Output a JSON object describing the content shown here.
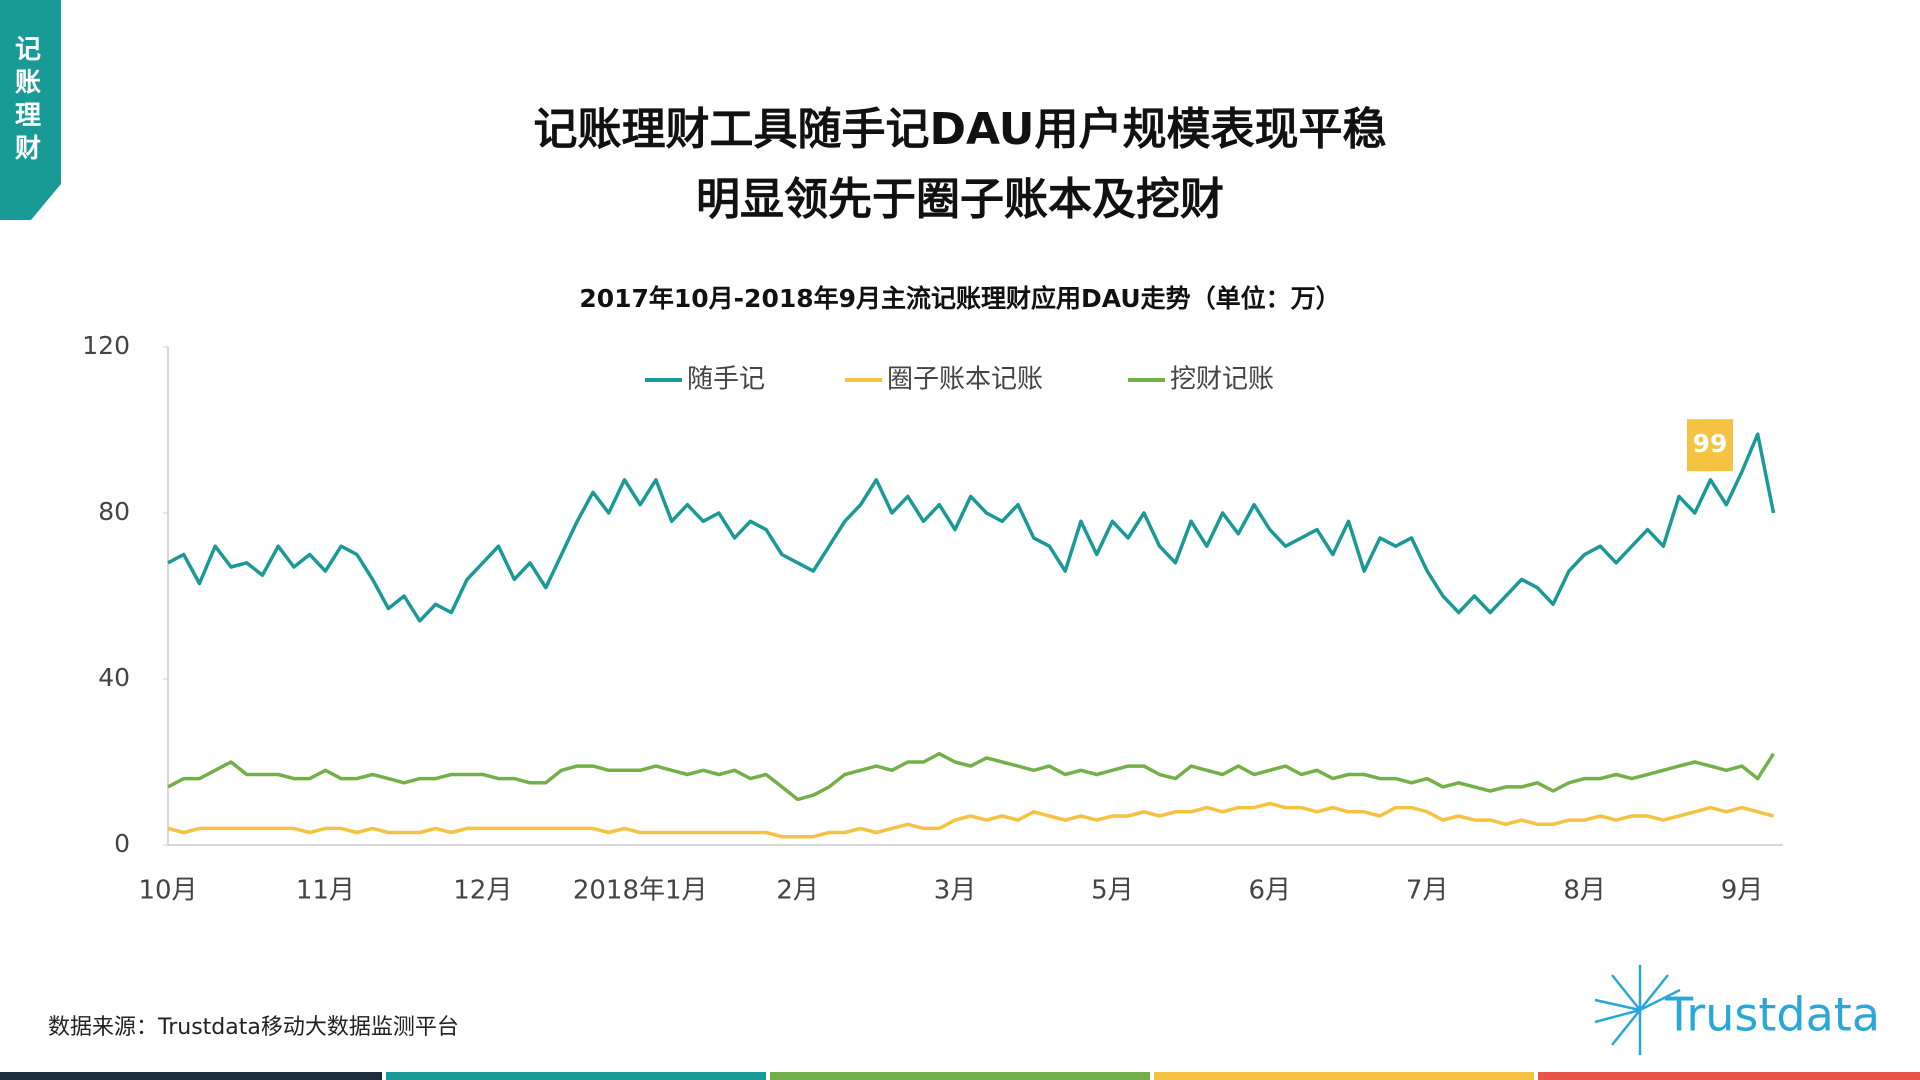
{
  "header": {
    "tag": "记账理财",
    "title_lines": [
      "记账理财工具随手记DAU用户规模表现平稳",
      "明显领先于圈子账本及挖财"
    ]
  },
  "chart_data": {
    "type": "line",
    "title": "2017年10月-2018年9月主流记账理财应用DAU走势（单位：万）",
    "categories": [
      "10月",
      null,
      null,
      null,
      null,
      null,
      null,
      null,
      null,
      null,
      "11月",
      null,
      null,
      null,
      null,
      null,
      null,
      null,
      null,
      null,
      "12月",
      null,
      null,
      null,
      null,
      null,
      null,
      null,
      null,
      null,
      "2018年1月",
      null,
      null,
      null,
      null,
      null,
      null,
      null,
      null,
      null,
      "2月",
      null,
      null,
      null,
      null,
      null,
      null,
      null,
      null,
      null,
      "3月",
      null,
      null,
      null,
      null,
      null,
      null,
      null,
      null,
      null,
      "5月",
      null,
      null,
      null,
      null,
      null,
      null,
      null,
      null,
      null,
      "6月",
      null,
      null,
      null,
      null,
      null,
      null,
      null,
      null,
      null,
      "7月",
      null,
      null,
      null,
      null,
      null,
      null,
      null,
      null,
      null,
      "8月",
      null,
      null,
      null,
      null,
      null,
      null,
      null,
      null,
      null,
      "9月",
      null,
      null
    ],
    "series": [
      {
        "name": "随手记",
        "color": "#1a9a97",
        "values": [
          68,
          70,
          63,
          72,
          67,
          68,
          65,
          72,
          67,
          70,
          66,
          72,
          70,
          64,
          57,
          60,
          54,
          58,
          56,
          64,
          68,
          72,
          64,
          68,
          62,
          70,
          78,
          85,
          80,
          88,
          82,
          88,
          78,
          82,
          78,
          80,
          74,
          78,
          76,
          70,
          68,
          66,
          72,
          78,
          82,
          88,
          80,
          84,
          78,
          82,
          76,
          84,
          80,
          78,
          82,
          74,
          72,
          66,
          78,
          70,
          78,
          74,
          80,
          72,
          68,
          78,
          72,
          80,
          75,
          82,
          76,
          72,
          74,
          76,
          70,
          78,
          66,
          74,
          72,
          74,
          66,
          60,
          56,
          60,
          56,
          60,
          64,
          62,
          58,
          66,
          70,
          72,
          68,
          72,
          76,
          72,
          84,
          80,
          88,
          82,
          90,
          99,
          80
        ]
      },
      {
        "name": "圈子账本记账",
        "color": "#f5c242",
        "values": [
          4,
          3,
          4,
          4,
          4,
          4,
          4,
          4,
          4,
          3,
          4,
          4,
          3,
          4,
          3,
          3,
          3,
          4,
          3,
          4,
          4,
          4,
          4,
          4,
          4,
          4,
          4,
          4,
          3,
          4,
          3,
          3,
          3,
          3,
          3,
          3,
          3,
          3,
          3,
          2,
          2,
          2,
          3,
          3,
          4,
          3,
          4,
          5,
          4,
          4,
          6,
          7,
          6,
          7,
          6,
          8,
          7,
          6,
          7,
          6,
          7,
          7,
          8,
          7,
          8,
          8,
          9,
          8,
          9,
          9,
          10,
          9,
          9,
          8,
          9,
          8,
          8,
          7,
          9,
          9,
          8,
          6,
          7,
          6,
          6,
          5,
          6,
          5,
          5,
          6,
          6,
          7,
          6,
          7,
          7,
          6,
          7,
          8,
          9,
          8,
          9,
          8,
          7
        ]
      },
      {
        "name": "挖财记账",
        "color": "#74b04a",
        "values": [
          14,
          16,
          16,
          18,
          20,
          17,
          17,
          17,
          16,
          16,
          18,
          16,
          16,
          17,
          16,
          15,
          16,
          16,
          17,
          17,
          17,
          16,
          16,
          15,
          15,
          18,
          19,
          19,
          18,
          18,
          18,
          19,
          18,
          17,
          18,
          17,
          18,
          16,
          17,
          14,
          11,
          12,
          14,
          17,
          18,
          19,
          18,
          20,
          20,
          22,
          20,
          19,
          21,
          20,
          19,
          18,
          19,
          17,
          18,
          17,
          18,
          19,
          19,
          17,
          16,
          19,
          18,
          17,
          19,
          17,
          18,
          19,
          17,
          18,
          16,
          17,
          17,
          16,
          16,
          15,
          16,
          14,
          15,
          14,
          13,
          14,
          14,
          15,
          13,
          15,
          16,
          16,
          17,
          16,
          17,
          18,
          19,
          20,
          19,
          18,
          19,
          16,
          22
        ]
      }
    ],
    "ylim": [
      0,
      120
    ],
    "yticks": [
      0,
      40,
      80,
      120
    ]
  },
  "source": "数据来源：Trustdata移动大数据监测平台",
  "logo": "Trustdata"
}
